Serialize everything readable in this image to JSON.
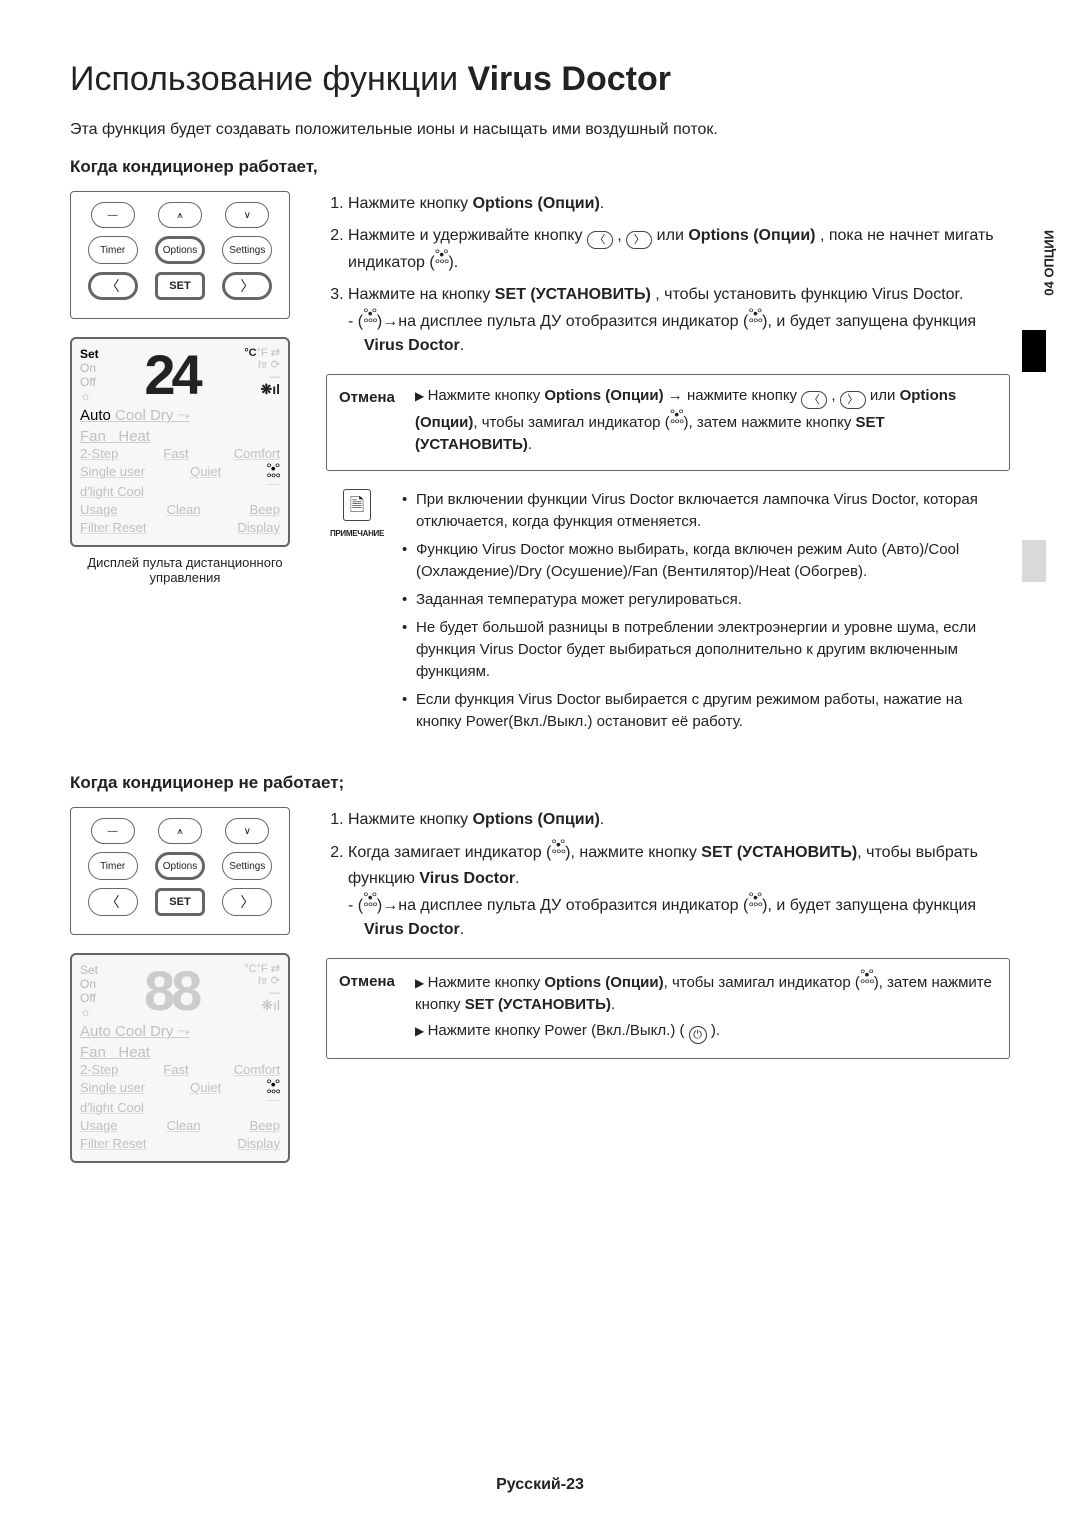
{
  "title_a": "Использование функции ",
  "title_b": "Virus Doctor",
  "intro": "Эта функция будет создавать положительные ионы и насыщать ими воздушный поток.",
  "side_label": "04  ОПЦИИ",
  "section1": {
    "heading": "Когда кондиционер работает,",
    "steps": {
      "s1_a": "Нажмите кнопку ",
      "s1_b": "Options (Опции)",
      "s1_c": ".",
      "s2_a": "Нажмите и удерживайте кнопку ",
      "s2_b": " , ",
      "s2_c": " или ",
      "s2_d": "Options (Опции)",
      "s2_e": " , пока не начнет мигать индикатор (",
      "s2_f": ").",
      "s3_a": "Нажмите на кнопку ",
      "s3_b": "SET (УСТАНОВИТЬ)",
      "s3_c": " , чтобы установить функцию Virus Doctor.",
      "s3_sub_a": "(",
      "s3_sub_b": ")→на дисплее пульта ДУ отобразится индикатор (",
      "s3_sub_c": "), и будет запущена функция ",
      "s3_sub_d": "Virus Doctor",
      "s3_sub_e": "."
    },
    "cancel": {
      "label": "Отмена",
      "l1_a": "Нажмите кнопку ",
      "l1_b": "Options (Опции)",
      "l1_c": " → нажмите кнопку ",
      "l1_d": " , ",
      "l1_e": " или ",
      "l2_a": "Options (Опции)",
      "l2_b": ", чтобы замигал индикатор (",
      "l2_c": "), затем нажмите кнопку ",
      "l2_d": "SET (УСТАНОВИТЬ)",
      "l2_e": "."
    },
    "note": {
      "label": "ПРИМЕЧАНИЕ",
      "n1": "При включении функции Virus Doctor включается лампочка Virus Doctor, которая отключается, когда функция отменяется.",
      "n2": "Функцию Virus Doctor можно выбирать, когда включен режим Auto (Авто)/Cool (Охлаждение)/Dry (Осушение)/Fan (Вентилятор)/Heat (Обогрев).",
      "n3": "Заданная температура может регулироваться.",
      "n4": "Не будет большой разницы в потреблении электроэнергии и уровне шума, если функция Virus Doctor будет выбираться дополнительно к другим включенным функциям.",
      "n5": "Если функция Virus Doctor выбирается с другим режимом работы, нажатие на кнопку Power(Вкл./Выкл.) остановит её работу."
    },
    "caption": "Дисплей пульта дистанционного управления"
  },
  "section2": {
    "heading": "Когда кондиционер не работает;",
    "steps": {
      "s1_a": "Нажмите кнопку ",
      "s1_b": "Options (Опции)",
      "s1_c": ".",
      "s2_a": "Когда замигает индикатор (",
      "s2_b": "), нажмите кнопку ",
      "s2_c": "SET (УСТАНОВИТЬ)",
      "s2_d": ", чтобы выбрать функцию ",
      "s2_e": "Virus Doctor",
      "s2_f": ".",
      "s2_sub_a": "(",
      "s2_sub_b": ")→на дисплее пульта ДУ отобразится индикатор (",
      "s2_sub_c": "), и будет запущена функция ",
      "s2_sub_d": "Virus Doctor",
      "s2_sub_e": "."
    },
    "cancel": {
      "label": "Отмена",
      "l1_a": "Нажмите кнопку ",
      "l1_b": "Options (Опции)",
      "l1_c": ", чтобы замигал индикатор (",
      "l1_d": "), затем нажмите кнопку ",
      "l1_e": "SET (УСТАНОВИТЬ)",
      "l1_f": ".",
      "l2_a": "Нажмите кнопку Power (Вкл./Выкл.) ( ",
      "l2_b": " )."
    }
  },
  "remote": {
    "timer": "Timer",
    "options": "Options",
    "settings": "Settings",
    "set": "SET",
    "left": "〈",
    "right": "〉",
    "minus": "—",
    "up": "⩚",
    "down": "∨"
  },
  "lcd": {
    "set": "Set",
    "on": "On",
    "off": "Off",
    "digits_active": "24",
    "digits_dim": "88",
    "c": "°C",
    "f": "°F",
    "hr": "hr",
    "auto": "Auto",
    "cool": "Cool",
    "dry": "Dry",
    "fan": "Fan",
    "heat": "Heat",
    "row1a": "2-Step",
    "row1b": "Fast",
    "row1c": "Comfort",
    "row2a": "Single user",
    "row2b": "Quiet",
    "row3a": "d'light Cool",
    "row4a": "Usage",
    "row4b": "Clean",
    "row4c": "Beep",
    "row5a": "Filter Reset",
    "row5b": "Display"
  },
  "footer": "Русский-23"
}
